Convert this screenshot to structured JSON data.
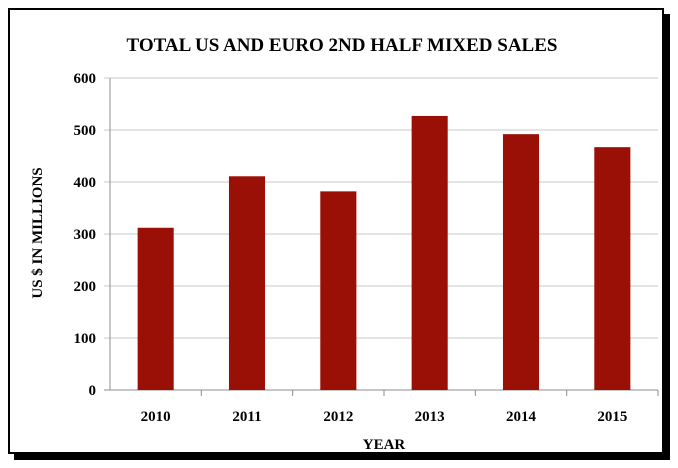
{
  "chart_data": {
    "type": "bar",
    "title": "TOTAL US AND EURO 2ND HALF MIXED SALES",
    "xlabel": "YEAR",
    "ylabel": "US $ IN MILLIONS",
    "categories": [
      "2010",
      "2011",
      "2012",
      "2013",
      "2014",
      "2015"
    ],
    "values": [
      312,
      411,
      382,
      527,
      492,
      467
    ],
    "ylim": [
      0,
      600
    ],
    "yticks": [
      0,
      100,
      200,
      300,
      400,
      500,
      600
    ],
    "grid": true,
    "legend": "none",
    "bar_color": "#9b1006"
  }
}
